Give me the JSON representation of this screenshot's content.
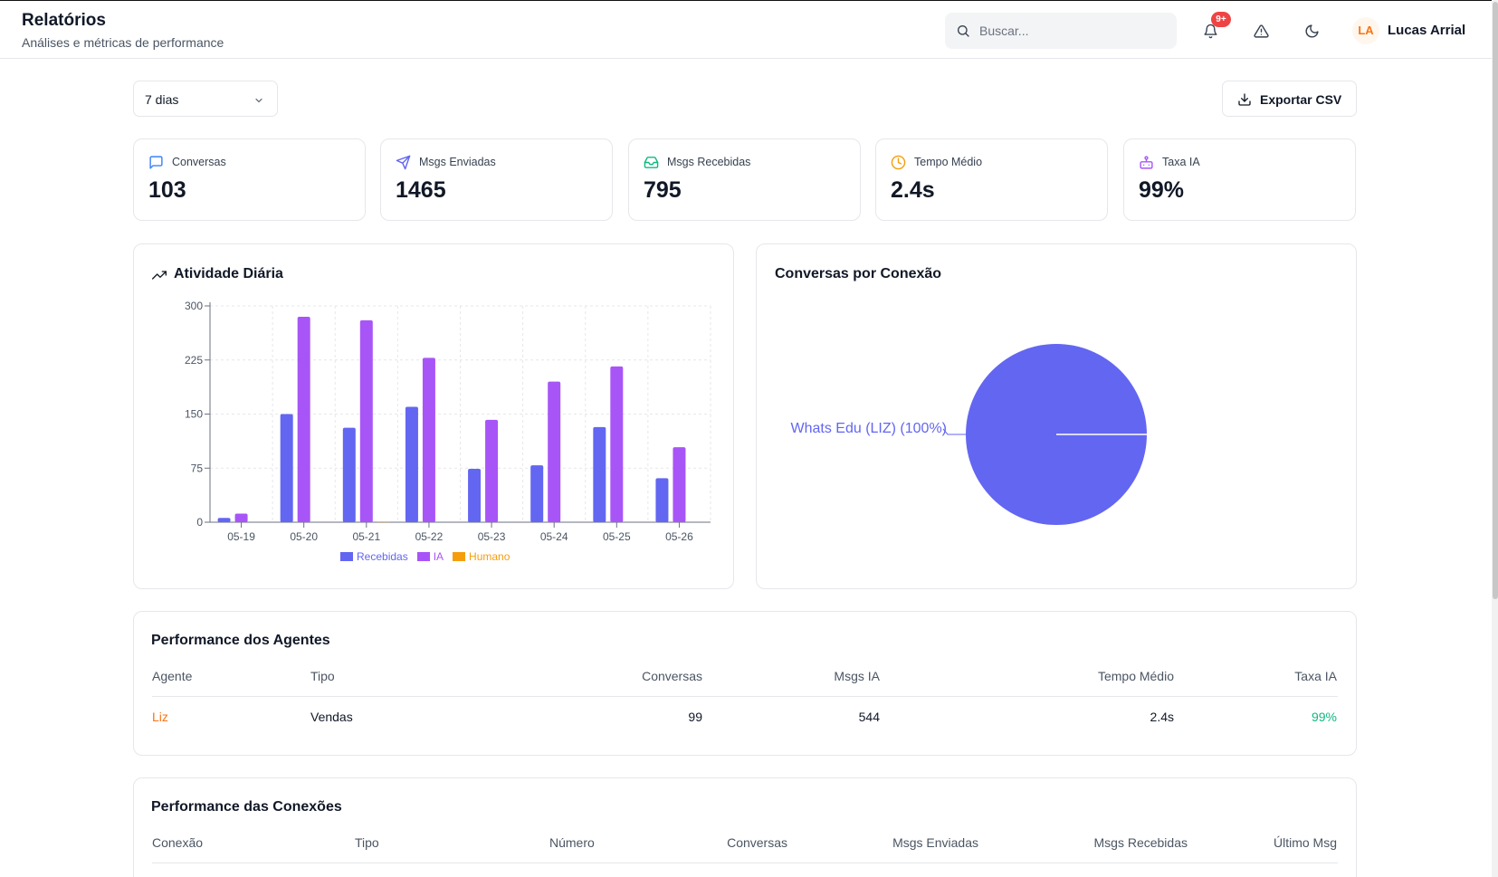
{
  "header": {
    "title": "Relatórios",
    "subtitle": "Análises e métricas de performance",
    "search_placeholder": "Buscar...",
    "notifications_badge": "9+",
    "user_initials": "LA",
    "user_name": "Lucas Arrial"
  },
  "toolbar": {
    "period_value": "7 dias",
    "export_label": "Exportar CSV"
  },
  "stats": [
    {
      "label": "Conversas",
      "value": "103",
      "icon": "message-square-icon",
      "color": "#3b82f6"
    },
    {
      "label": "Msgs Enviadas",
      "value": "1465",
      "icon": "send-icon",
      "color": "#6366f1"
    },
    {
      "label": "Msgs Recebidas",
      "value": "795",
      "icon": "inbox-icon",
      "color": "#10b981"
    },
    {
      "label": "Tempo Médio",
      "value": "2.4s",
      "icon": "clock-icon",
      "color": "#f59e0b"
    },
    {
      "label": "Taxa IA",
      "value": "99%",
      "icon": "bot-icon",
      "color": "#a855f7"
    }
  ],
  "activity": {
    "title": "Atividade Diária"
  },
  "connections_chart": {
    "title": "Conversas por Conexão"
  },
  "chart_data": [
    {
      "type": "bar",
      "categories": [
        "05-19",
        "05-20",
        "05-21",
        "05-22",
        "05-23",
        "05-24",
        "05-25",
        "05-26"
      ],
      "series": [
        {
          "name": "Recebidas",
          "color": "#6366f1",
          "values": [
            6,
            150,
            131,
            160,
            74,
            79,
            132,
            61
          ]
        },
        {
          "name": "IA",
          "color": "#a855f7",
          "values": [
            12,
            285,
            280,
            228,
            142,
            195,
            216,
            104
          ]
        },
        {
          "name": "Humano",
          "color": "#f59e0b",
          "values": [
            0,
            0,
            1,
            0,
            0,
            0,
            0,
            0
          ]
        }
      ],
      "ylim": [
        0,
        300
      ],
      "yticks": [
        0,
        75,
        150,
        225,
        300
      ],
      "grid": true,
      "legend": "bottom"
    },
    {
      "type": "pie",
      "labels": [
        "Whats Edu (LIZ) (100%)"
      ],
      "values": [
        100
      ],
      "colors": [
        "#6366f1"
      ]
    }
  ],
  "agents_table": {
    "title": "Performance dos Agentes",
    "headers": [
      "Agente",
      "Tipo",
      "Conversas",
      "Msgs IA",
      "Tempo Médio",
      "Taxa IA"
    ],
    "rows": [
      {
        "agent": "Liz",
        "type": "Vendas",
        "conversations": "99",
        "ai_msgs": "544",
        "avg_time": "2.4s",
        "ai_rate": "99%"
      }
    ],
    "agent_color": "#f97316",
    "rate_color": "#10b981"
  },
  "connections_table": {
    "title": "Performance das Conexões",
    "headers": [
      "Conexão",
      "Tipo",
      "Número",
      "Conversas",
      "Msgs Enviadas",
      "Msgs Recebidas",
      "Último Msg"
    ]
  }
}
